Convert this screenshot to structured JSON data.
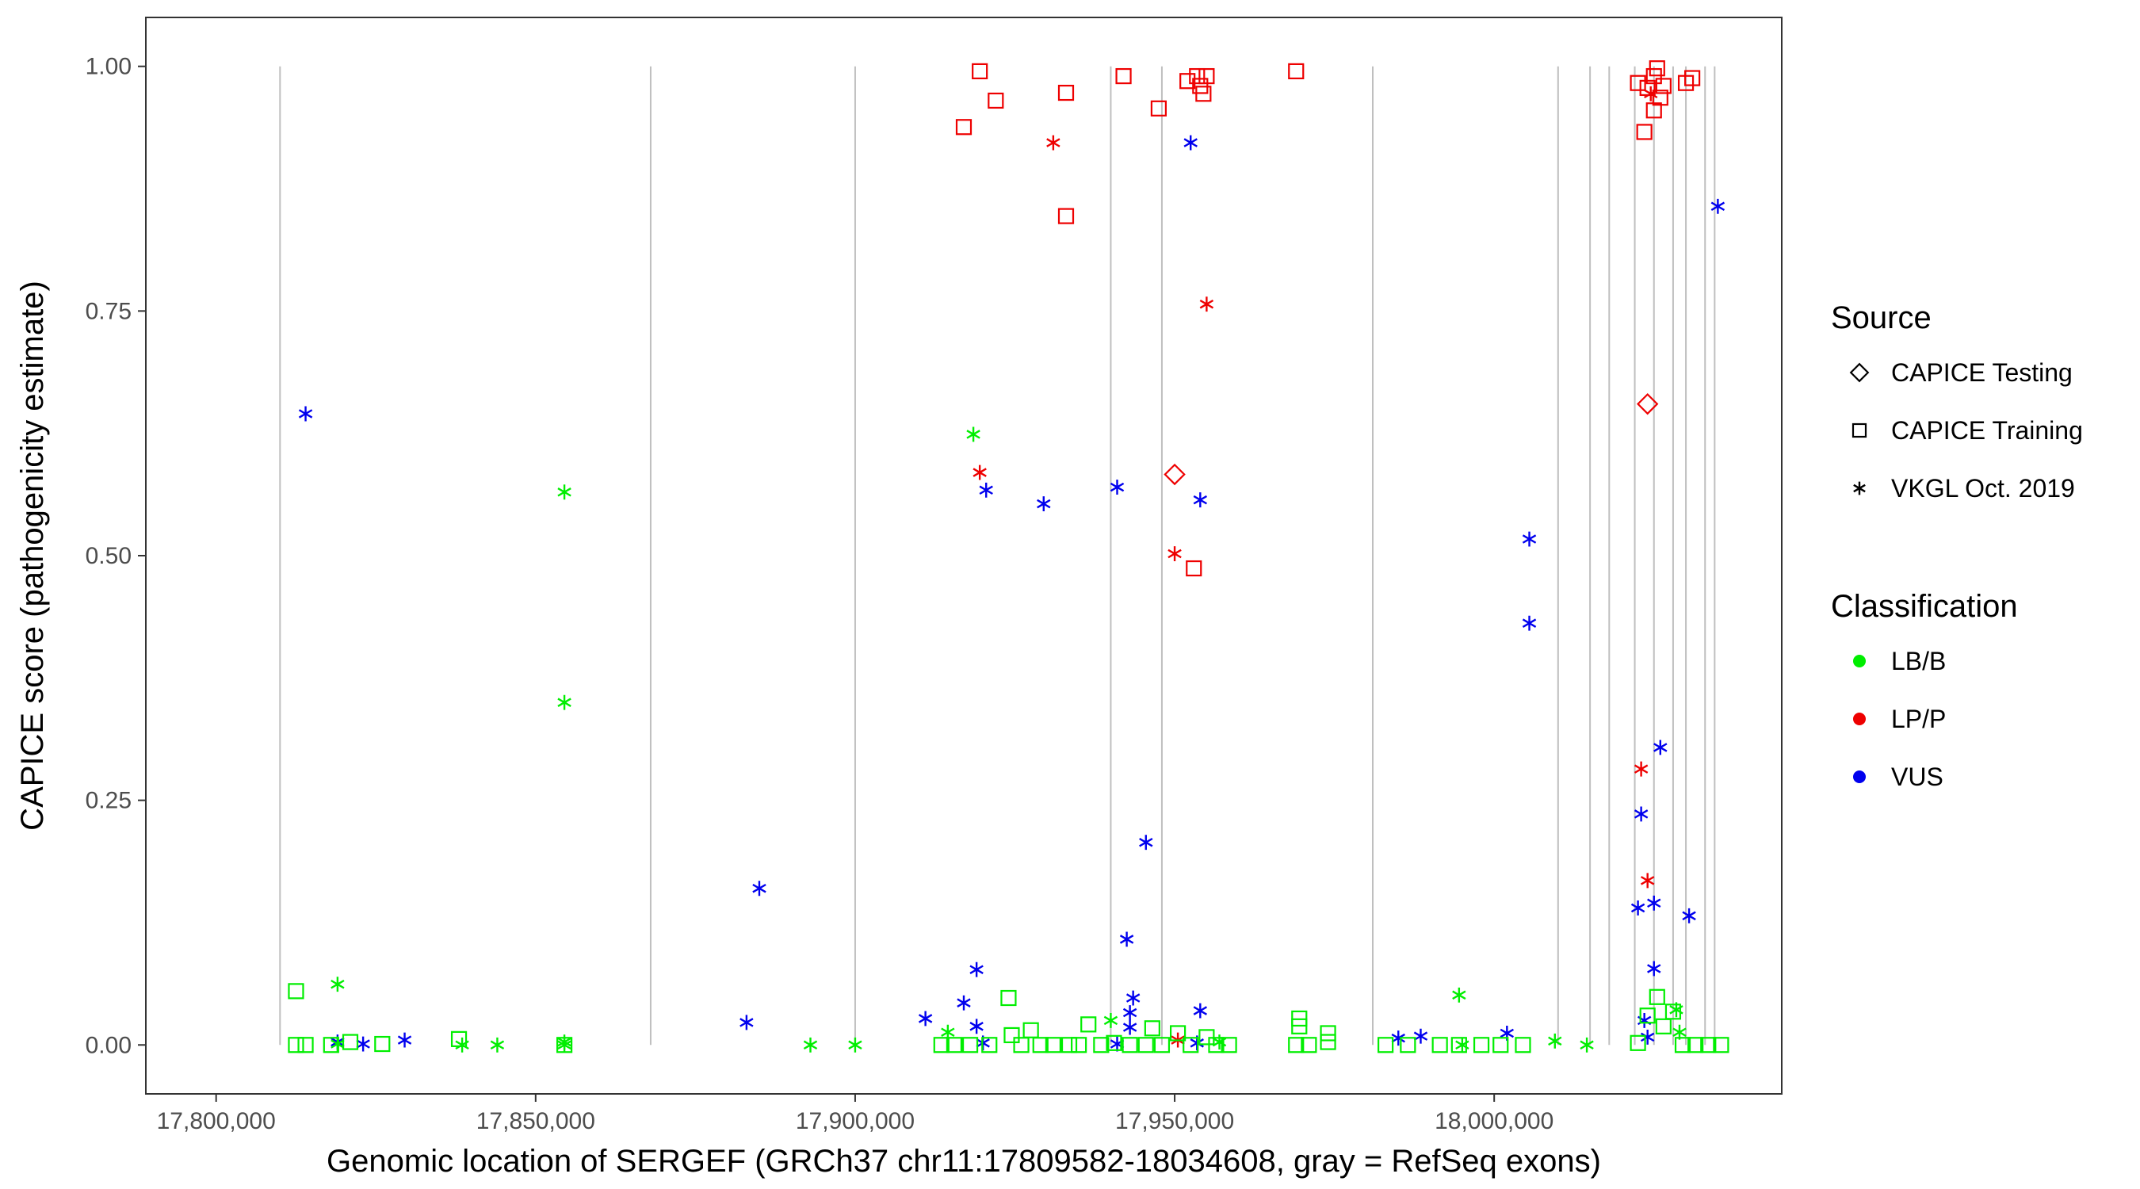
{
  "chart_data": {
    "type": "scatter",
    "title": "",
    "xlabel": "Genomic location of SERGEF (GRCh37 chr11:17809582-18034608, gray = RefSeq exons)",
    "ylabel": "CAPICE score (pathogenicity estimate)",
    "xlim": [
      17789000,
      18045000
    ],
    "ylim": [
      -0.05,
      1.05
    ],
    "x_ticks": [
      {
        "value": 17800000,
        "label": "17,800,000"
      },
      {
        "value": 17850000,
        "label": "17,850,000"
      },
      {
        "value": 17900000,
        "label": "17,900,000"
      },
      {
        "value": 17950000,
        "label": "17,950,000"
      },
      {
        "value": 18000000,
        "label": "18,000,000"
      }
    ],
    "y_ticks": [
      {
        "value": 0.0,
        "label": "0.00"
      },
      {
        "value": 0.25,
        "label": "0.25"
      },
      {
        "value": 0.5,
        "label": "0.50"
      },
      {
        "value": 0.75,
        "label": "0.75"
      },
      {
        "value": 1.0,
        "label": "1.00"
      }
    ],
    "grid": false,
    "exon_lines": [
      17810000,
      17868000,
      17900000,
      17940000,
      17948000,
      17981000,
      18010000,
      18015000,
      18018000,
      18022000,
      18025000,
      18028000,
      18030000,
      18033000,
      18034500
    ],
    "legend": {
      "placement": "right",
      "source_title": "Source",
      "source_items": [
        {
          "label": "CAPICE Testing",
          "shape": "diamond"
        },
        {
          "label": "CAPICE Training",
          "shape": "square"
        },
        {
          "label": "VKGL Oct. 2019",
          "shape": "asterisk"
        }
      ],
      "class_title": "Classification",
      "class_items": [
        {
          "label": "LB/B",
          "color": "#00ee00"
        },
        {
          "label": "LP/P",
          "color": "#ee0000"
        },
        {
          "label": "VUS",
          "color": "#0000ee"
        }
      ]
    },
    "colors": {
      "LB/B": "#00ee00",
      "LP/P": "#ee0000",
      "VUS": "#0000ee"
    },
    "series": [
      {
        "classification": "LP/P",
        "source": "CAPICE Training",
        "shape": "square",
        "points": [
          [
            17917000,
            0.938
          ],
          [
            17919500,
            0.995
          ],
          [
            17922000,
            0.965
          ],
          [
            17933000,
            0.973
          ],
          [
            17942000,
            0.99
          ],
          [
            17947500,
            0.957
          ],
          [
            17952000,
            0.985
          ],
          [
            17953500,
            0.99
          ],
          [
            17954000,
            0.98
          ],
          [
            17954500,
            0.972
          ],
          [
            17955000,
            0.99
          ],
          [
            17969000,
            0.995
          ],
          [
            17933000,
            0.847
          ],
          [
            17953000,
            0.487
          ],
          [
            18022500,
            0.983
          ],
          [
            18023500,
            0.933
          ],
          [
            18024000,
            0.978
          ],
          [
            18025000,
            0.99
          ],
          [
            18025500,
            0.998
          ],
          [
            18025000,
            0.955
          ],
          [
            18026000,
            0.968
          ],
          [
            18026500,
            0.98
          ],
          [
            18030000,
            0.983
          ],
          [
            18031000,
            0.988
          ]
        ]
      },
      {
        "classification": "LP/P",
        "source": "VKGL Oct. 2019",
        "shape": "asterisk",
        "points": [
          [
            17931000,
            0.922
          ],
          [
            17955000,
            0.757
          ],
          [
            17919500,
            0.585
          ],
          [
            17950000,
            0.502
          ],
          [
            17950500,
            0.005
          ],
          [
            18024500,
            0.972
          ],
          [
            18023000,
            0.282
          ],
          [
            18024000,
            0.168
          ]
        ]
      },
      {
        "classification": "LP/P",
        "source": "CAPICE Testing",
        "shape": "diamond",
        "points": [
          [
            17950000,
            0.583
          ],
          [
            18024000,
            0.655
          ]
        ]
      },
      {
        "classification": "VUS",
        "source": "VKGL Oct. 2019",
        "shape": "asterisk",
        "points": [
          [
            17814000,
            0.645
          ],
          [
            17819000,
            0.003
          ],
          [
            17823000,
            0.001
          ],
          [
            17829500,
            0.005
          ],
          [
            17883000,
            0.023
          ],
          [
            17885000,
            0.16
          ],
          [
            17911000,
            0.027
          ],
          [
            17917000,
            0.043
          ],
          [
            17919000,
            0.077
          ],
          [
            17919000,
            0.019
          ],
          [
            17920000,
            0.002
          ],
          [
            17920500,
            0.567
          ],
          [
            17929500,
            0.553
          ],
          [
            17941000,
            0.57
          ],
          [
            17941000,
            0.001
          ],
          [
            17942500,
            0.108
          ],
          [
            17943000,
            0.033
          ],
          [
            17943000,
            0.018
          ],
          [
            17943500,
            0.048
          ],
          [
            17945500,
            0.207
          ],
          [
            17952500,
            0.922
          ],
          [
            17954000,
            0.557
          ],
          [
            17954000,
            0.035
          ],
          [
            17953500,
            0.002
          ],
          [
            17985000,
            0.007
          ],
          [
            17988500,
            0.009
          ],
          [
            18002000,
            0.012
          ],
          [
            18005500,
            0.517
          ],
          [
            18005500,
            0.431
          ],
          [
            18022500,
            0.14
          ],
          [
            18023000,
            0.236
          ],
          [
            18023500,
            0.025
          ],
          [
            18024000,
            0.008
          ],
          [
            18025000,
            0.145
          ],
          [
            18025000,
            0.078
          ],
          [
            18026000,
            0.304
          ],
          [
            18030500,
            0.132
          ],
          [
            18035000,
            0.857
          ]
        ]
      },
      {
        "classification": "LB/B",
        "source": "VKGL Oct. 2019",
        "shape": "asterisk",
        "points": [
          [
            17819000,
            0.062
          ],
          [
            17819000,
            0.001
          ],
          [
            17838500,
            0.0
          ],
          [
            17844000,
            0.0
          ],
          [
            17854500,
            0.565
          ],
          [
            17854500,
            0.35
          ],
          [
            17854500,
            0.003
          ],
          [
            17854500,
            0.0
          ],
          [
            17893000,
            0.0
          ],
          [
            17900000,
            0.0
          ],
          [
            17914500,
            0.013
          ],
          [
            17918500,
            0.624
          ],
          [
            17940000,
            0.025
          ],
          [
            17957000,
            0.003
          ],
          [
            17994500,
            0.051
          ],
          [
            17995000,
            0.0
          ],
          [
            18009500,
            0.004
          ],
          [
            18014500,
            0.0
          ],
          [
            18028500,
            0.036
          ],
          [
            18029000,
            0.013
          ]
        ]
      },
      {
        "classification": "LB/B",
        "source": "CAPICE Training",
        "shape": "square",
        "points": [
          [
            17812500,
            0.055
          ],
          [
            17812500,
            0.0
          ],
          [
            17814000,
            0.0
          ],
          [
            17818000,
            0.0
          ],
          [
            17821000,
            0.003
          ],
          [
            17826000,
            0.001
          ],
          [
            17838000,
            0.006
          ],
          [
            17854500,
            0.0
          ],
          [
            17913500,
            0.0
          ],
          [
            17915500,
            0.0
          ],
          [
            17918000,
            0.0
          ],
          [
            17921000,
            0.0
          ],
          [
            17924000,
            0.048
          ],
          [
            17924500,
            0.01
          ],
          [
            17926000,
            0.0
          ],
          [
            17927500,
            0.015
          ],
          [
            17929000,
            0.0
          ],
          [
            17931000,
            0.0
          ],
          [
            17933500,
            0.0
          ],
          [
            17935000,
            0.0
          ],
          [
            17936500,
            0.021
          ],
          [
            17938500,
            0.0
          ],
          [
            17940500,
            0.002
          ],
          [
            17943000,
            0.0
          ],
          [
            17945500,
            0.0
          ],
          [
            17946500,
            0.017
          ],
          [
            17948000,
            0.0
          ],
          [
            17950500,
            0.012
          ],
          [
            17952500,
            0.0
          ],
          [
            17955000,
            0.008
          ],
          [
            17956500,
            0.0
          ],
          [
            17958500,
            0.0
          ],
          [
            17969500,
            0.027
          ],
          [
            17969500,
            0.019
          ],
          [
            17969000,
            0.0
          ],
          [
            17971000,
            0.0
          ],
          [
            17974000,
            0.012
          ],
          [
            17974000,
            0.003
          ],
          [
            17983000,
            0.0
          ],
          [
            17986500,
            0.0
          ],
          [
            17991500,
            0.0
          ],
          [
            17994500,
            0.0
          ],
          [
            17998000,
            0.0
          ],
          [
            18001000,
            0.0
          ],
          [
            18004500,
            0.0
          ],
          [
            18022500,
            0.002
          ],
          [
            18024000,
            0.03
          ],
          [
            18025500,
            0.049
          ],
          [
            18026500,
            0.019
          ],
          [
            18028000,
            0.034
          ],
          [
            18029500,
            0.0
          ],
          [
            18031500,
            0.0
          ],
          [
            18033500,
            0.0
          ],
          [
            18035500,
            0.0
          ]
        ]
      }
    ]
  }
}
